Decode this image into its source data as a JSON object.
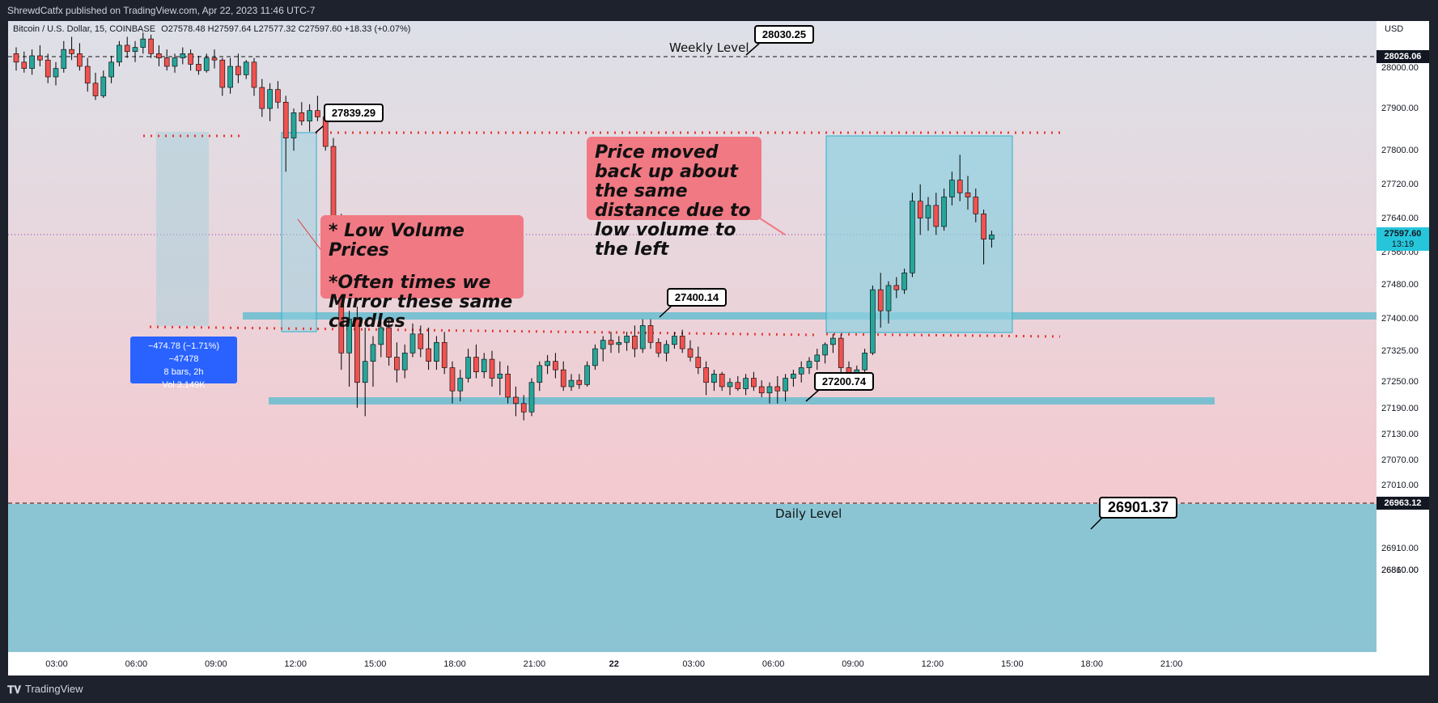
{
  "header": {
    "published": "ShrewdCatfx published on TradingView.com, Apr 22, 2023 11:46 UTC-7",
    "symbol": "Bitcoin / U.S. Dollar, 15, COINBASE",
    "ohlc": "O27578.48 H27597.64 L27577.32 C27597.60 +18.33 (+0.07%)",
    "currency": "USD"
  },
  "footer": {
    "brand": "TradingView"
  },
  "colors": {
    "bull": "#26a69a",
    "bear": "#ef5350",
    "zone": "#7fc4d4",
    "label": "#f07983"
  },
  "chart_data": {
    "type": "candlestick",
    "y_ticks": [
      "28000.00",
      "27900.00",
      "27800.00",
      "27720.00",
      "27640.00",
      "27560.00",
      "27480.00",
      "27400.00",
      "27325.00",
      "27250.00",
      "27190.00",
      "27130.00",
      "27070.00",
      "27010.00",
      "26950.00",
      "26910.00",
      "26860.00",
      "26810.00"
    ],
    "x_ticks": [
      "03:00",
      "06:00",
      "09:00",
      "12:00",
      "15:00",
      "18:00",
      "21:00",
      "22",
      "03:00",
      "06:00",
      "09:00",
      "12:00",
      "15:00",
      "18:00",
      "21:00"
    ],
    "price_tags": {
      "weekly": "28026.06",
      "current": "27597.60",
      "countdown": "13:19",
      "daily": "26963.12"
    },
    "levels": {
      "weekly_label": "Weekly Level",
      "daily_label": "Daily Level"
    },
    "callouts": [
      "28030.25",
      "27839.29",
      "27400.14",
      "27200.74",
      "26901.37"
    ],
    "annotations": {
      "low_volume_1": "* Low Volume Prices",
      "low_volume_2": "*Often times we Mirror these same candles",
      "mirror": "Price moved back up about the same distance due to low volume to the left"
    },
    "measure": {
      "change": "−474.78 (−1.71%) −47478",
      "bars": "8 bars, 2h",
      "volume": "Vol 3.149K"
    },
    "candles": [
      [
        28030,
        28045,
        27990,
        28010
      ],
      [
        28010,
        28035,
        27985,
        27995
      ],
      [
        27995,
        28040,
        27980,
        28025
      ],
      [
        28025,
        28050,
        28000,
        28015
      ],
      [
        28015,
        28030,
        27960,
        27975
      ],
      [
        27975,
        28010,
        27955,
        27995
      ],
      [
        27995,
        28060,
        27985,
        28040
      ],
      [
        28040,
        28070,
        28015,
        28030
      ],
      [
        28030,
        28055,
        27990,
        28000
      ],
      [
        28000,
        28020,
        27940,
        27960
      ],
      [
        27960,
        27985,
        27920,
        27930
      ],
      [
        27930,
        27990,
        27925,
        27975
      ],
      [
        27975,
        28025,
        27960,
        28010
      ],
      [
        28010,
        28060,
        28000,
        28050
      ],
      [
        28050,
        28070,
        28020,
        28035
      ],
      [
        28035,
        28060,
        28010,
        28045
      ],
      [
        28045,
        28080,
        28030,
        28065
      ],
      [
        28065,
        28075,
        28020,
        28030
      ],
      [
        28030,
        28050,
        28000,
        28020
      ],
      [
        28020,
        28040,
        27990,
        28000
      ],
      [
        28000,
        28030,
        27985,
        28020
      ],
      [
        28020,
        28045,
        28005,
        28030
      ],
      [
        28030,
        28040,
        27990,
        28005
      ],
      [
        28005,
        28025,
        27980,
        27990
      ],
      [
        27990,
        28030,
        27985,
        28020
      ],
      [
        28020,
        28040,
        27995,
        28015
      ],
      [
        28015,
        28020,
        27930,
        27950
      ],
      [
        27950,
        28020,
        27935,
        28000
      ],
      [
        28000,
        28030,
        27960,
        27980
      ],
      [
        27980,
        28015,
        27970,
        28010
      ],
      [
        28010,
        28020,
        27930,
        27950
      ],
      [
        27950,
        27970,
        27880,
        27900
      ],
      [
        27900,
        27960,
        27870,
        27945
      ],
      [
        27945,
        27965,
        27900,
        27915
      ],
      [
        27915,
        27930,
        27750,
        27830
      ],
      [
        27830,
        27900,
        27800,
        27890
      ],
      [
        27890,
        27915,
        27860,
        27870
      ],
      [
        27870,
        27910,
        27845,
        27895
      ],
      [
        27895,
        27930,
        27870,
        27880
      ],
      [
        27880,
        27895,
        27800,
        27810
      ],
      [
        27810,
        27830,
        27560,
        27630
      ],
      [
        27630,
        27650,
        27280,
        27320
      ],
      [
        27320,
        27420,
        27240,
        27400
      ],
      [
        27400,
        27430,
        27190,
        27250
      ],
      [
        27250,
        27380,
        27170,
        27300
      ],
      [
        27300,
        27360,
        27240,
        27340
      ],
      [
        27340,
        27410,
        27310,
        27380
      ],
      [
        27380,
        27400,
        27290,
        27310
      ],
      [
        27310,
        27345,
        27250,
        27280
      ],
      [
        27280,
        27340,
        27260,
        27320
      ],
      [
        27320,
        27390,
        27310,
        27365
      ],
      [
        27365,
        27385,
        27310,
        27330
      ],
      [
        27330,
        27380,
        27280,
        27300
      ],
      [
        27300,
        27360,
        27280,
        27345
      ],
      [
        27345,
        27370,
        27270,
        27285
      ],
      [
        27285,
        27300,
        27200,
        27230
      ],
      [
        27230,
        27280,
        27205,
        27260
      ],
      [
        27260,
        27330,
        27250,
        27310
      ],
      [
        27310,
        27340,
        27260,
        27275
      ],
      [
        27275,
        27320,
        27260,
        27305
      ],
      [
        27305,
        27325,
        27240,
        27260
      ],
      [
        27260,
        27300,
        27220,
        27270
      ],
      [
        27270,
        27290,
        27200,
        27215
      ],
      [
        27215,
        27240,
        27170,
        27200
      ],
      [
        27200,
        27220,
        27160,
        27180
      ],
      [
        27180,
        27260,
        27170,
        27250
      ],
      [
        27250,
        27300,
        27230,
        27290
      ],
      [
        27290,
        27315,
        27270,
        27300
      ],
      [
        27300,
        27320,
        27260,
        27280
      ],
      [
        27280,
        27300,
        27230,
        27240
      ],
      [
        27240,
        27270,
        27230,
        27255
      ],
      [
        27255,
        27270,
        27235,
        27245
      ],
      [
        27245,
        27300,
        27240,
        27290
      ],
      [
        27290,
        27340,
        27280,
        27330
      ],
      [
        27330,
        27360,
        27300,
        27350
      ],
      [
        27350,
        27370,
        27320,
        27340
      ],
      [
        27340,
        27360,
        27320,
        27345
      ],
      [
        27345,
        27370,
        27325,
        27360
      ],
      [
        27360,
        27385,
        27310,
        27330
      ],
      [
        27330,
        27400,
        27320,
        27385
      ],
      [
        27385,
        27400,
        27330,
        27345
      ],
      [
        27345,
        27355,
        27310,
        27320
      ],
      [
        27320,
        27350,
        27300,
        27340
      ],
      [
        27340,
        27370,
        27330,
        27360
      ],
      [
        27360,
        27375,
        27320,
        27330
      ],
      [
        27330,
        27350,
        27300,
        27310
      ],
      [
        27310,
        27335,
        27270,
        27285
      ],
      [
        27285,
        27300,
        27220,
        27250
      ],
      [
        27250,
        27280,
        27230,
        27270
      ],
      [
        27270,
        27275,
        27230,
        27240
      ],
      [
        27240,
        27260,
        27220,
        27250
      ],
      [
        27250,
        27265,
        27230,
        27235
      ],
      [
        27235,
        27270,
        27220,
        27260
      ],
      [
        27260,
        27275,
        27230,
        27240
      ],
      [
        27240,
        27255,
        27215,
        27225
      ],
      [
        27225,
        27250,
        27200,
        27240
      ],
      [
        27240,
        27265,
        27200,
        27230
      ],
      [
        27230,
        27270,
        27205,
        27260
      ],
      [
        27260,
        27280,
        27240,
        27270
      ],
      [
        27270,
        27300,
        27250,
        27285
      ],
      [
        27285,
        27310,
        27270,
        27300
      ],
      [
        27300,
        27330,
        27280,
        27315
      ],
      [
        27315,
        27345,
        27295,
        27340
      ],
      [
        27340,
        27365,
        27320,
        27355
      ],
      [
        27355,
        27365,
        27270,
        27285
      ],
      [
        27285,
        27300,
        27240,
        27265
      ],
      [
        27265,
        27290,
        27250,
        27280
      ],
      [
        27280,
        27330,
        27270,
        27320
      ],
      [
        27320,
        27480,
        27315,
        27470
      ],
      [
        27470,
        27510,
        27380,
        27420
      ],
      [
        27420,
        27490,
        27390,
        27480
      ],
      [
        27480,
        27500,
        27450,
        27470
      ],
      [
        27470,
        27520,
        27460,
        27510
      ],
      [
        27510,
        27700,
        27500,
        27680
      ],
      [
        27680,
        27720,
        27600,
        27640
      ],
      [
        27640,
        27690,
        27610,
        27670
      ],
      [
        27670,
        27700,
        27600,
        27620
      ],
      [
        27620,
        27710,
        27610,
        27690
      ],
      [
        27690,
        27750,
        27670,
        27730
      ],
      [
        27730,
        27790,
        27680,
        27700
      ],
      [
        27700,
        27740,
        27660,
        27690
      ],
      [
        27690,
        27710,
        27630,
        27650
      ],
      [
        27650,
        27660,
        27530,
        27590
      ],
      [
        27590,
        27610,
        27570,
        27600
      ]
    ]
  }
}
